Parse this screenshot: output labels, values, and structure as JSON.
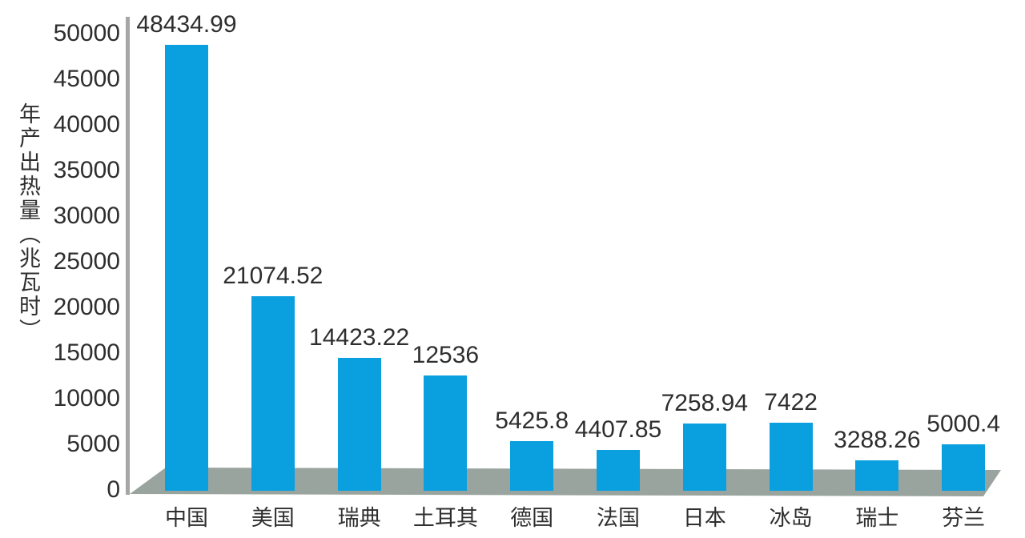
{
  "chart_data": {
    "type": "bar",
    "title": "",
    "xlabel": "",
    "ylabel": "年产出热量（兆瓦时）",
    "categories": [
      "中国",
      "美国",
      "瑞典",
      "土耳其",
      "德国",
      "法国",
      "日本",
      "冰岛",
      "瑞士",
      "芬兰"
    ],
    "values": [
      48434.99,
      21074.52,
      14423.22,
      12536,
      5425.8,
      4407.85,
      7258.94,
      7422,
      3288.26,
      5000.4
    ],
    "yticks": [
      0,
      5000,
      10000,
      15000,
      20000,
      25000,
      30000,
      35000,
      40000,
      45000,
      50000
    ],
    "ylim": [
      0,
      50000
    ],
    "grid": false,
    "legend": "none",
    "style_3d_floor": true,
    "colors": {
      "bar": "#0a9fdf",
      "floor": "#9aa49f",
      "axis": "#a6a6a6",
      "text": "#2e2e2e",
      "background": "#ffffff"
    }
  }
}
